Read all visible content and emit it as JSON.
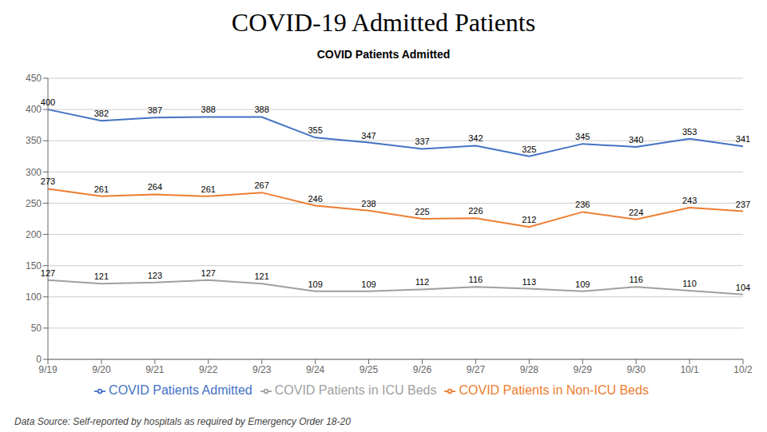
{
  "chart_data": {
    "type": "line",
    "title": "COVID-19 Admitted Patients",
    "subtitle": "COVID Patients Admitted",
    "annotations": [
      "Data Source: Self-reported by hospitals as required by Emergency Order 18-20"
    ],
    "categories": [
      "9/19",
      "9/20",
      "9/21",
      "9/22",
      "9/23",
      "9/24",
      "9/25",
      "9/26",
      "9/27",
      "9/28",
      "9/29",
      "9/30",
      "10/1",
      "10/2"
    ],
    "series": [
      {
        "name": "COVID Patients Admitted",
        "color": "#4472C4",
        "values": [
          400,
          382,
          387,
          388,
          388,
          355,
          347,
          337,
          342,
          325,
          345,
          340,
          353,
          341
        ]
      },
      {
        "name": "COVID Patients in ICU Beds",
        "color": "#A0A0A0",
        "values": [
          127,
          121,
          123,
          127,
          121,
          109,
          109,
          112,
          116,
          113,
          109,
          116,
          110,
          104
        ]
      },
      {
        "name": "COVID Patients in Non-ICU Beds",
        "color": "#ED7D31",
        "values": [
          273,
          261,
          264,
          261,
          267,
          246,
          238,
          225,
          226,
          212,
          236,
          224,
          243,
          237
        ]
      }
    ],
    "ylim": [
      0,
      450
    ],
    "yticks": [
      0,
      50,
      100,
      150,
      200,
      250,
      300,
      350,
      400,
      450
    ],
    "grid": true,
    "legend": "bottom",
    "data_labels": true
  }
}
